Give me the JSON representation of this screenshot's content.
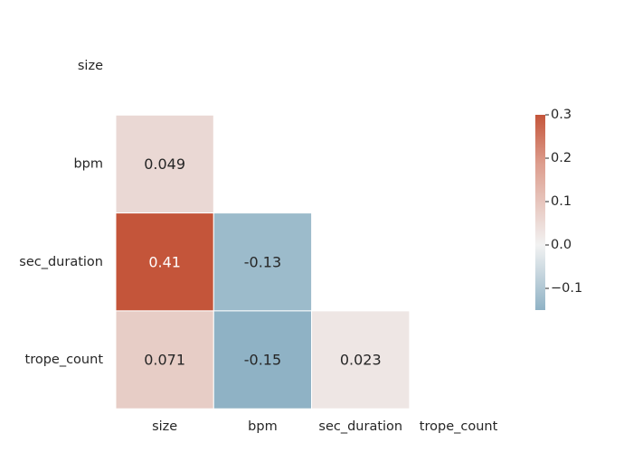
{
  "chart_data": {
    "type": "heatmap",
    "title": "",
    "xlabel": "",
    "ylabel": "",
    "variables": [
      "size",
      "bpm",
      "sec_duration",
      "trope_count"
    ],
    "layout": "lower-triangle (diagonal masked)",
    "matrix": [
      [
        null,
        null,
        null,
        null
      ],
      [
        0.049,
        null,
        null,
        null
      ],
      [
        0.41,
        -0.13,
        null,
        null
      ],
      [
        0.071,
        -0.15,
        0.023,
        null
      ]
    ],
    "annotations": [
      {
        "row": 1,
        "col": 0,
        "text": "0.049"
      },
      {
        "row": 2,
        "col": 0,
        "text": "0.41"
      },
      {
        "row": 2,
        "col": 1,
        "text": "-0.13"
      },
      {
        "row": 3,
        "col": 0,
        "text": "0.071"
      },
      {
        "row": 3,
        "col": 1,
        "text": "-0.15"
      },
      {
        "row": 3,
        "col": 2,
        "text": "0.023"
      }
    ],
    "colorbar": {
      "vmin": -0.15,
      "vmax": 0.3,
      "ticks": [
        0.3,
        0.2,
        0.1,
        0.0,
        -0.1
      ],
      "tick_labels": [
        "0.3",
        "0.2",
        "0.1",
        "0.0",
        "−0.1"
      ],
      "negative_color": "#8fb2c5",
      "neutral_color": "#f2f2f2",
      "positive_color": "#c4553a"
    },
    "grid": false,
    "legend": "colorbar right"
  }
}
